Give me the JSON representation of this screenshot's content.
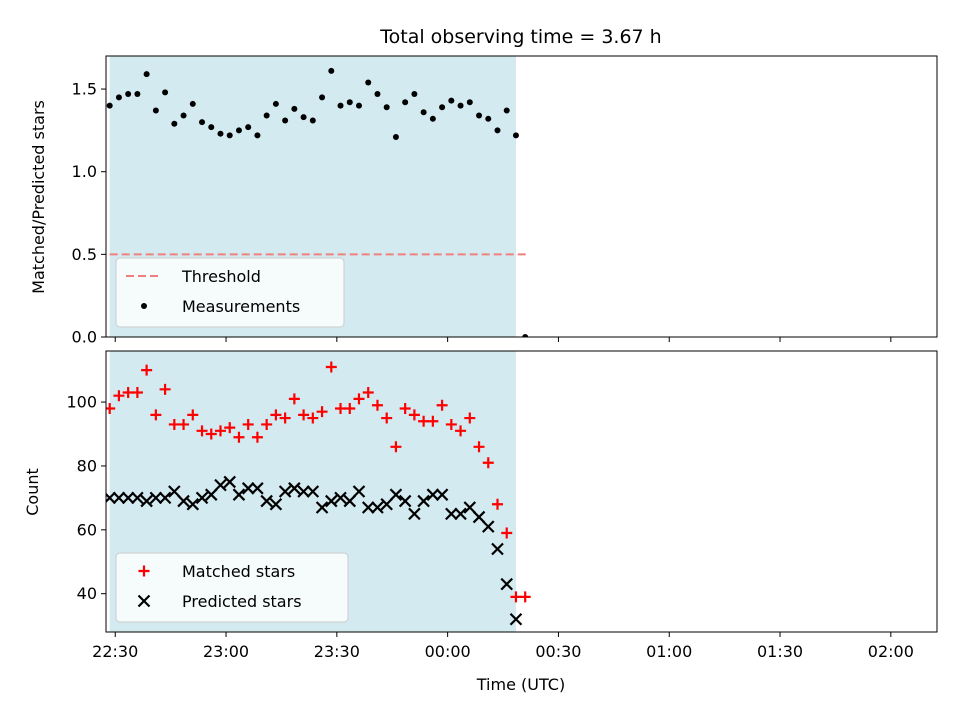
{
  "chart_data": [
    {
      "type": "scatter",
      "title": "Total observing time = 3.67 h",
      "ylabel": "Matched/Predicted stars",
      "xlabel": "",
      "xlim": [
        -5,
        445
      ],
      "ylim": [
        0,
        1.7
      ],
      "yticks": [
        0.0,
        0.5,
        1.0,
        1.5
      ],
      "yticklabels": [
        "0.0",
        "0.5",
        "1.0",
        "1.5"
      ],
      "xticks": [
        0,
        60,
        120,
        180,
        240,
        300,
        360,
        420
      ],
      "x_unit": "minutes after 22:30 UTC",
      "shaded_span": [
        -3,
        217
      ],
      "shade_color": "#d3eaf0",
      "threshold": {
        "value": 0.5,
        "x": [
          -3,
          223
        ],
        "color": "#ef7f7f"
      },
      "legend": {
        "placement": "lower-left",
        "entries": [
          "Threshold",
          "Measurements"
        ]
      },
      "series": [
        {
          "name": "Measurements",
          "marker": "dot",
          "color": "#000000",
          "x": [
            -3,
            2,
            7,
            12,
            17,
            22,
            27,
            32,
            37,
            42,
            47,
            52,
            57,
            62,
            67,
            72,
            77,
            82,
            87,
            92,
            97,
            102,
            107,
            112,
            117,
            122,
            127,
            132,
            137,
            142,
            147,
            152,
            157,
            162,
            167,
            172,
            177,
            182,
            187,
            192,
            197,
            202,
            207,
            212,
            217,
            222
          ],
          "y": [
            1.4,
            1.45,
            1.47,
            1.47,
            1.59,
            1.37,
            1.48,
            1.29,
            1.34,
            1.41,
            1.3,
            1.27,
            1.23,
            1.22,
            1.25,
            1.27,
            1.22,
            1.34,
            1.41,
            1.31,
            1.38,
            1.33,
            1.31,
            1.45,
            1.61,
            1.4,
            1.42,
            1.4,
            1.54,
            1.47,
            1.39,
            1.21,
            1.42,
            1.47,
            1.36,
            1.32,
            1.39,
            1.43,
            1.4,
            1.42,
            1.34,
            1.32,
            1.25,
            1.37,
            1.22,
            0.0
          ]
        }
      ]
    },
    {
      "type": "scatter",
      "title": "",
      "ylabel": "Count",
      "xlabel": "Time (UTC)",
      "xlim": [
        -5,
        445
      ],
      "ylim": [
        28,
        116
      ],
      "yticks": [
        40,
        60,
        80,
        100
      ],
      "yticklabels": [
        "40",
        "60",
        "80",
        "100"
      ],
      "xticks": [
        0,
        60,
        120,
        180,
        240,
        300,
        360,
        420
      ],
      "xticklabels": [
        "22:30",
        "23:00",
        "23:30",
        "00:00",
        "00:30",
        "01:00",
        "01:30",
        "02:00"
      ],
      "x_unit": "minutes after 22:30 UTC",
      "shaded_span": [
        -3,
        217
      ],
      "shade_color": "#d3eaf0",
      "legend": {
        "placement": "lower-left",
        "entries": [
          "Matched stars",
          "Predicted stars"
        ]
      },
      "series": [
        {
          "name": "Matched stars",
          "marker": "plus",
          "color": "#ff0000",
          "x": [
            -3,
            2,
            7,
            12,
            17,
            22,
            27,
            32,
            37,
            42,
            47,
            52,
            57,
            62,
            67,
            72,
            77,
            82,
            87,
            92,
            97,
            102,
            107,
            112,
            117,
            122,
            127,
            132,
            137,
            142,
            147,
            152,
            157,
            162,
            167,
            172,
            177,
            182,
            187,
            192,
            197,
            202,
            207,
            212,
            217,
            222
          ],
          "y": [
            98,
            102,
            103,
            103,
            110,
            96,
            104,
            93,
            93,
            96,
            91,
            90,
            91,
            92,
            89,
            93,
            89,
            93,
            96,
            95,
            101,
            96,
            95,
            97,
            111,
            98,
            98,
            101,
            103,
            99,
            95,
            86,
            98,
            96,
            94,
            94,
            99,
            93,
            91,
            95,
            86,
            81,
            68,
            59,
            39,
            39
          ]
        },
        {
          "name": "Predicted stars",
          "marker": "x",
          "color": "#000000",
          "x": [
            -3,
            2,
            7,
            12,
            17,
            22,
            27,
            32,
            37,
            42,
            47,
            52,
            57,
            62,
            67,
            72,
            77,
            82,
            87,
            92,
            97,
            102,
            107,
            112,
            117,
            122,
            127,
            132,
            137,
            142,
            147,
            152,
            157,
            162,
            167,
            172,
            177,
            182,
            187,
            192,
            197,
            202,
            207,
            212,
            217
          ],
          "y": [
            70,
            70,
            70,
            70,
            69,
            70,
            70,
            72,
            69,
            68,
            70,
            71,
            74,
            75,
            71,
            73,
            73,
            69,
            68,
            72,
            73,
            72,
            72,
            67,
            69,
            70,
            69,
            72,
            67,
            67,
            68,
            71,
            69,
            65,
            69,
            71,
            71,
            65,
            65,
            67,
            64,
            61,
            54,
            43,
            32
          ]
        }
      ]
    }
  ]
}
